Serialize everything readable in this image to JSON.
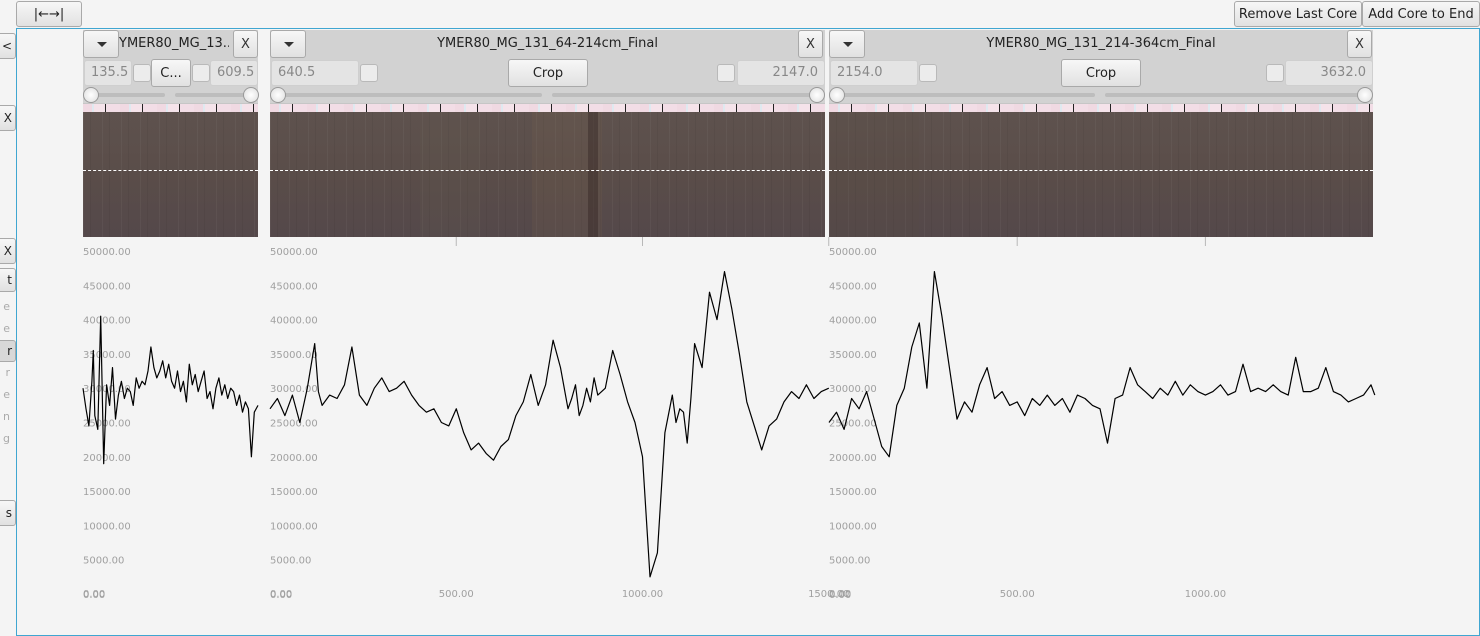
{
  "toolbar": {
    "nav_button_label": "|←→|",
    "remove_last_core_label": "Remove Last Core",
    "add_core_to_end_label": "Add Core to End"
  },
  "side_panel": {
    "buttons": [
      "<",
      "X",
      "X",
      "t",
      "r",
      "s"
    ],
    "labels": [
      "e",
      "e",
      "r",
      "e",
      "n",
      "g"
    ]
  },
  "cores": [
    {
      "title": "YMER80_MG_13..",
      "close_label": "X",
      "start_value": "135.5",
      "end_value": "609.5",
      "crop_label": "C...",
      "chart_data": {
        "type": "line",
        "ylim": [
          0,
          50000
        ],
        "y_ticks": [
          "0.00",
          "5000.00",
          "10000.00",
          "15000.00",
          "20000.00",
          "25000.00",
          "30000.00",
          "35000.00",
          "40000.00",
          "45000.00",
          "50000.00"
        ],
        "x_ticks": [
          "0.00"
        ],
        "xlim": [
          0,
          474
        ],
        "series": [
          {
            "x": [
              0,
              8,
              16,
              24,
              28,
              32,
              40,
              48,
              56,
              64,
              72,
              80,
              88,
              96,
              104,
              112,
              120,
              128,
              136,
              144,
              152,
              160,
              168,
              176,
              184,
              192,
              200,
              208,
              216,
              224,
              232,
              240,
              248,
              256,
              264,
              272,
              280,
              288,
              296,
              304,
              312,
              320,
              328,
              336,
              344,
              352,
              360,
              368,
              376,
              384,
              392,
              400,
              408,
              416,
              424,
              432,
              440,
              448,
              456,
              464,
              474
            ],
            "y": [
              30000,
              27000,
              24500,
              31000,
              35500,
              26000,
              24000,
              40500,
              19000,
              30500,
              27500,
              33000,
              25500,
              29000,
              31000,
              28500,
              30000,
              29500,
              27500,
              31500,
              30000,
              31000,
              30500,
              32500,
              36000,
              33000,
              31500,
              32500,
              34000,
              31500,
              33500,
              31000,
              30000,
              32500,
              29500,
              31000,
              28000,
              33500,
              30500,
              32000,
              29500,
              31000,
              32500,
              28500,
              29500,
              27000,
              30000,
              31500,
              29000,
              30500,
              28500,
              30000,
              29500,
              27500,
              29000,
              26500,
              28000,
              27000,
              20000,
              26500,
              27500
            ]
          }
        ]
      }
    },
    {
      "title": "YMER80_MG_131_64-214cm_Final",
      "close_label": "X",
      "start_value": "640.5",
      "end_value": "2147.0",
      "crop_label": "Crop",
      "chart_data": {
        "type": "line",
        "ylim": [
          0,
          50000
        ],
        "y_ticks": [
          "0.00",
          "5000.00",
          "10000.00",
          "15000.00",
          "20000.00",
          "25000.00",
          "30000.00",
          "35000.00",
          "40000.00",
          "45000.00",
          "50000.00"
        ],
        "x_ticks": [
          "0.00",
          "500.00",
          "1000.00",
          "1500.00"
        ],
        "xlim": [
          0,
          1500
        ],
        "series": [
          {
            "x": [
              0,
              20,
              40,
              60,
              80,
              100,
              120,
              130,
              140,
              160,
              180,
              200,
              220,
              240,
              260,
              280,
              300,
              320,
              340,
              360,
              380,
              400,
              420,
              440,
              460,
              480,
              500,
              520,
              540,
              560,
              580,
              600,
              620,
              640,
              660,
              680,
              700,
              720,
              740,
              760,
              780,
              800,
              810,
              820,
              830,
              840,
              850,
              860,
              870,
              880,
              900,
              920,
              940,
              960,
              980,
              1000,
              1020,
              1040,
              1060,
              1080,
              1090,
              1100,
              1110,
              1120,
              1130,
              1140,
              1160,
              1180,
              1200,
              1220,
              1240,
              1260,
              1280,
              1300,
              1320,
              1340,
              1360,
              1380,
              1400,
              1420,
              1440,
              1460,
              1480,
              1500
            ],
            "y": [
              27000,
              28500,
              26000,
              29000,
              25000,
              30000,
              36500,
              29500,
              27500,
              29000,
              28500,
              30500,
              36000,
              29000,
              27500,
              30000,
              31500,
              29500,
              30000,
              31000,
              29000,
              27500,
              26500,
              27000,
              25000,
              24500,
              27000,
              23500,
              21000,
              22000,
              20500,
              19500,
              21500,
              22500,
              26000,
              28000,
              32000,
              27500,
              30500,
              37000,
              33000,
              27000,
              28500,
              30500,
              26000,
              27500,
              30000,
              28000,
              31500,
              29000,
              30000,
              35500,
              32000,
              28000,
              25000,
              20000,
              2500,
              6000,
              23500,
              29000,
              25000,
              27000,
              26500,
              22000,
              28500,
              36500,
              33000,
              44000,
              40000,
              47000,
              41500,
              35000,
              28000,
              24500,
              21000,
              24500,
              25500,
              28000,
              29500,
              28500,
              30500,
              28500,
              29500,
              30000
            ]
          }
        ]
      }
    },
    {
      "title": "YMER80_MG_131_214-364cm_Final",
      "close_label": "X",
      "start_value": "2154.0",
      "end_value": "3632.0",
      "crop_label": "Crop",
      "chart_data": {
        "type": "line",
        "ylim": [
          0,
          50000
        ],
        "y_ticks": [
          "0.00",
          "5000.00",
          "10000.00",
          "15000.00",
          "20000.00",
          "25000.00",
          "30000.00",
          "35000.00",
          "40000.00",
          "45000.00",
          "50000.00"
        ],
        "x_ticks": [
          "0.00",
          "500.00",
          "1000.00"
        ],
        "xlim": [
          0,
          1450
        ],
        "series": [
          {
            "x": [
              0,
              20,
              40,
              60,
              80,
              100,
              120,
              140,
              160,
              180,
              200,
              220,
              240,
              260,
              280,
              300,
              320,
              340,
              360,
              380,
              400,
              420,
              440,
              460,
              480,
              500,
              520,
              540,
              560,
              580,
              600,
              620,
              640,
              660,
              680,
              700,
              720,
              740,
              760,
              780,
              800,
              820,
              840,
              860,
              880,
              900,
              920,
              940,
              960,
              980,
              1000,
              1020,
              1040,
              1060,
              1080,
              1100,
              1120,
              1140,
              1160,
              1180,
              1200,
              1220,
              1240,
              1260,
              1280,
              1300,
              1320,
              1340,
              1360,
              1380,
              1400,
              1420,
              1440,
              1450
            ],
            "y": [
              25000,
              26500,
              24000,
              28500,
              27000,
              29500,
              25500,
              21500,
              20000,
              27500,
              30000,
              36000,
              39500,
              30000,
              47000,
              40500,
              33000,
              25500,
              28000,
              26500,
              30500,
              33000,
              28500,
              29500,
              27500,
              28000,
              26000,
              28500,
              27500,
              29000,
              27500,
              28500,
              26500,
              29000,
              28500,
              27500,
              27000,
              22000,
              28500,
              29000,
              33000,
              30500,
              29500,
              28500,
              30000,
              29000,
              31000,
              29000,
              30500,
              29500,
              29000,
              29500,
              30500,
              29000,
              29500,
              33500,
              29500,
              30000,
              29500,
              30500,
              29500,
              29000,
              34500,
              29500,
              29500,
              30000,
              33000,
              29500,
              29000,
              28000,
              28500,
              29000,
              30500,
              29000
            ]
          }
        ]
      }
    }
  ]
}
